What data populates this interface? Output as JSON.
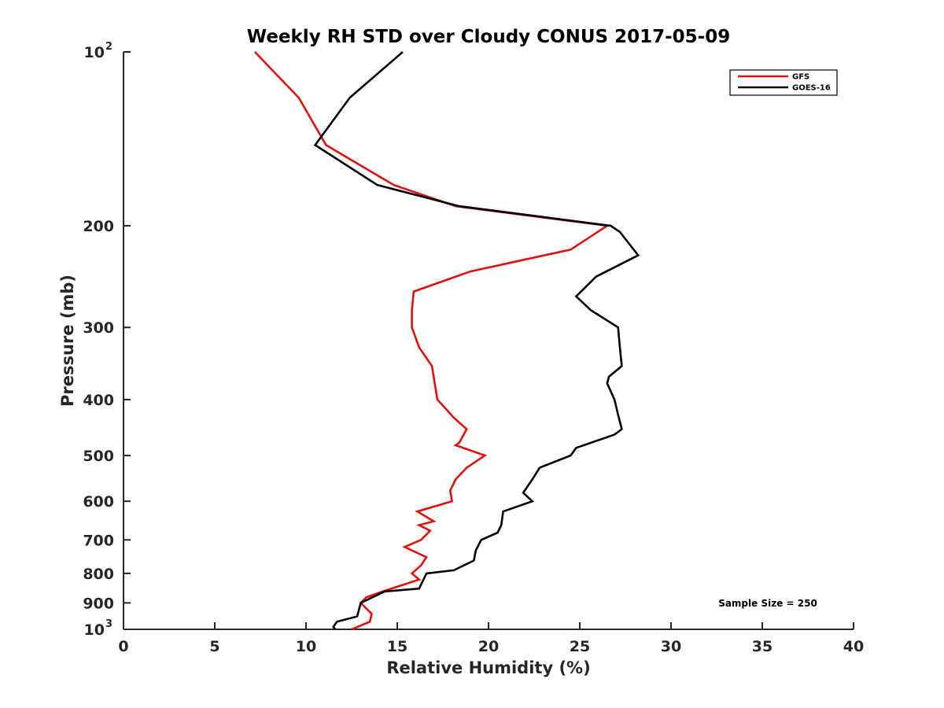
{
  "chart_data": {
    "type": "line",
    "title": "Weekly RH STD over Cloudy CONUS 2017-05-09",
    "xlabel": "Relative Humidity (%)",
    "ylabel": "Pressure (mb)",
    "xlim": [
      0,
      40
    ],
    "ylim": [
      100,
      1000
    ],
    "yscale": "log",
    "y_reversed": true,
    "grid": false,
    "legend_position": "top-right",
    "annotation": "Sample Size = 250",
    "x_ticks": [
      {
        "value": 0,
        "label": "0"
      },
      {
        "value": 5,
        "label": "5"
      },
      {
        "value": 10,
        "label": "10"
      },
      {
        "value": 15,
        "label": "15"
      },
      {
        "value": 20,
        "label": "20"
      },
      {
        "value": 25,
        "label": "25"
      },
      {
        "value": 30,
        "label": "30"
      },
      {
        "value": 35,
        "label": "35"
      },
      {
        "value": 40,
        "label": "40"
      }
    ],
    "y_ticks": [
      {
        "value": 100,
        "label": "10",
        "sup": "2"
      },
      {
        "value": 200,
        "label": "200",
        "sup": ""
      },
      {
        "value": 300,
        "label": "300",
        "sup": ""
      },
      {
        "value": 400,
        "label": "400",
        "sup": ""
      },
      {
        "value": 500,
        "label": "500",
        "sup": ""
      },
      {
        "value": 600,
        "label": "600",
        "sup": ""
      },
      {
        "value": 700,
        "label": "700",
        "sup": ""
      },
      {
        "value": 800,
        "label": "800",
        "sup": ""
      },
      {
        "value": 900,
        "label": "900",
        "sup": ""
      },
      {
        "value": 1000,
        "label": "10",
        "sup": "3"
      }
    ],
    "series": [
      {
        "name": "GFS",
        "color": "#e01010",
        "points": [
          [
            7.2,
            100
          ],
          [
            9.6,
            120
          ],
          [
            11.1,
            145
          ],
          [
            14.8,
            170
          ],
          [
            18.2,
            185
          ],
          [
            26.5,
            200
          ],
          [
            24.5,
            220
          ],
          [
            19.0,
            240
          ],
          [
            15.9,
            260
          ],
          [
            15.8,
            280
          ],
          [
            15.8,
            300
          ],
          [
            16.2,
            325
          ],
          [
            16.9,
            350
          ],
          [
            17.2,
            400
          ],
          [
            18.1,
            430
          ],
          [
            18.8,
            450
          ],
          [
            18.4,
            475
          ],
          [
            18.2,
            480
          ],
          [
            19.8,
            500
          ],
          [
            18.8,
            525
          ],
          [
            18.2,
            550
          ],
          [
            17.9,
            575
          ],
          [
            18.0,
            600
          ],
          [
            16.1,
            625
          ],
          [
            17.0,
            650
          ],
          [
            16.2,
            660
          ],
          [
            16.8,
            675
          ],
          [
            16.3,
            700
          ],
          [
            15.4,
            720
          ],
          [
            16.6,
            750
          ],
          [
            16.3,
            775
          ],
          [
            15.8,
            800
          ],
          [
            16.2,
            820
          ],
          [
            14.2,
            860
          ],
          [
            13.3,
            880
          ],
          [
            13.0,
            900
          ],
          [
            13.6,
            940
          ],
          [
            13.5,
            970
          ],
          [
            12.5,
            1000
          ]
        ]
      },
      {
        "name": "GOES-16",
        "color": "#000000",
        "points": [
          [
            15.3,
            100
          ],
          [
            12.4,
            120
          ],
          [
            10.5,
            145
          ],
          [
            13.9,
            170
          ],
          [
            18.4,
            185
          ],
          [
            26.7,
            200
          ],
          [
            27.2,
            205
          ],
          [
            28.2,
            225
          ],
          [
            25.9,
            245
          ],
          [
            24.8,
            265
          ],
          [
            25.6,
            280
          ],
          [
            27.1,
            300
          ],
          [
            27.2,
            325
          ],
          [
            27.3,
            350
          ],
          [
            26.6,
            365
          ],
          [
            26.5,
            375
          ],
          [
            26.9,
            400
          ],
          [
            27.1,
            425
          ],
          [
            27.3,
            450
          ],
          [
            26.9,
            460
          ],
          [
            24.8,
            485
          ],
          [
            24.5,
            500
          ],
          [
            22.8,
            525
          ],
          [
            22.4,
            550
          ],
          [
            21.9,
            580
          ],
          [
            22.4,
            600
          ],
          [
            20.8,
            625
          ],
          [
            20.7,
            660
          ],
          [
            20.5,
            680
          ],
          [
            19.6,
            700
          ],
          [
            19.5,
            710
          ],
          [
            19.3,
            730
          ],
          [
            19.2,
            760
          ],
          [
            18.1,
            790
          ],
          [
            16.6,
            800
          ],
          [
            16.2,
            850
          ],
          [
            14.3,
            860
          ],
          [
            13.0,
            900
          ],
          [
            12.8,
            950
          ],
          [
            11.7,
            970
          ],
          [
            11.5,
            990
          ],
          [
            11.6,
            1000
          ]
        ]
      }
    ]
  }
}
